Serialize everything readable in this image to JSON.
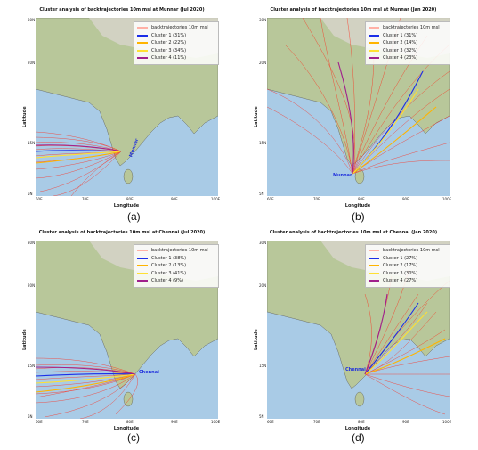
{
  "colors": {
    "sea": "#a9cbe6",
    "land": "#b8c79a",
    "mountain": "#d8d4cc",
    "trajectory": "#ff2a1a",
    "legend_traj": "#ffb0a6",
    "cluster1": "#1b2ee8",
    "cluster2": "#ffb400",
    "cluster3": "#ffe033",
    "cluster4": "#a0208c"
  },
  "axis": {
    "xlabel": "Longitude",
    "ylabel": "Latitude",
    "xticks": [
      "60E",
      "70E",
      "80E",
      "90E",
      "100E"
    ],
    "yticks": [
      "30N",
      "20N",
      "15N",
      "5N"
    ]
  },
  "legend_traj_label": "backtrajectories 10m msl",
  "panels": [
    {
      "caption": "(a)",
      "title": "Cluster analysis of backtrajectories 10m msl at Munnar (Jul 2020)",
      "city": "Munnar",
      "clusters": [
        "Cluster 1 (31%)",
        "Cluster 2 (22%)",
        "Cluster 3 (34%)",
        "Cluster 4 (11%)"
      ]
    },
    {
      "caption": "(b)",
      "title": "Cluster analysis of backtrajectories 10m msl at Munnar (Jan 2020)",
      "city": "Munnar",
      "clusters": [
        "Cluster 1 (31%)",
        "Cluster 2 (14%)",
        "Cluster 3 (32%)",
        "Cluster 4 (23%)"
      ]
    },
    {
      "caption": "(c)",
      "title": "Cluster analysis of backtrajectories 10m msl at Chennai (Jul 2020)",
      "city": "Chennai",
      "clusters": [
        "Cluster 1 (38%)",
        "Cluster 2 (13%)",
        "Cluster 3 (41%)",
        "Cluster 4 (9%)"
      ]
    },
    {
      "caption": "(d)",
      "title": "Cluster analysis of backtrajectories 10m msl at Chennai (Jan 2020)",
      "city": "Chennai",
      "clusters": [
        "Cluster 1 (27%)",
        "Cluster 2 (17%)",
        "Cluster 3 (30%)",
        "Cluster 4 (27%)"
      ]
    }
  ]
}
